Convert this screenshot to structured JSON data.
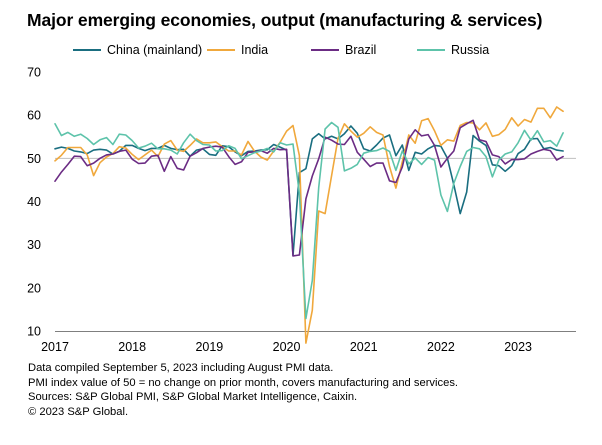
{
  "chart_data": {
    "type": "line",
    "title": "Major emerging economies, output (manufacturing & services)",
    "xlabel": "",
    "ylabel": "",
    "ylim": [
      10,
      70
    ],
    "yticks": [
      10,
      20,
      30,
      40,
      50,
      60,
      70
    ],
    "reference_line": 50,
    "xlim": [
      2017.0,
      2023.75
    ],
    "xtick_labels": [
      "2017",
      "2018",
      "2019",
      "2020",
      "2021",
      "2022",
      "2023"
    ],
    "x_start": "2017-01",
    "frequency": "monthly",
    "legend_position": "top",
    "series": [
      {
        "name": "China (mainland)",
        "color": "#1a6e80",
        "values": [
          52.2,
          52.6,
          52.3,
          51.7,
          51.5,
          51.1,
          51.9,
          52.1,
          51.9,
          51.0,
          51.6,
          53.0,
          53.0,
          52.3,
          51.8,
          52.3,
          52.3,
          53.0,
          52.3,
          52.0,
          52.1,
          50.5,
          51.9,
          52.2,
          50.9,
          50.7,
          52.9,
          52.7,
          51.5,
          50.6,
          51.6,
          51.7,
          51.9,
          52.0,
          53.2,
          52.6,
          51.9,
          27.5,
          46.7,
          47.6,
          54.5,
          55.7,
          54.5,
          55.1,
          54.5,
          55.7,
          57.5,
          55.8,
          52.2,
          51.7,
          53.1,
          54.7,
          55.4,
          50.6,
          53.1,
          47.2,
          51.4,
          51.0,
          52.2,
          53.0,
          52.8,
          50.0,
          43.9,
          37.2,
          42.2,
          55.3,
          54.0,
          53.0,
          48.5,
          48.3,
          47.0,
          48.3,
          51.1,
          52.1,
          54.5,
          54.6,
          52.2,
          52.5,
          51.9,
          51.7
        ]
      },
      {
        "name": "India",
        "color": "#f0a83c",
        "values": [
          49.4,
          50.7,
          52.5,
          52.5,
          52.5,
          50.8,
          46.0,
          49.0,
          50.3,
          51.1,
          52.7,
          52.4,
          50.9,
          49.7,
          50.8,
          51.9,
          50.4,
          53.3,
          54.1,
          51.9,
          51.6,
          53.0,
          54.5,
          53.6,
          53.6,
          53.8,
          52.7,
          51.7,
          51.7,
          50.8,
          53.9,
          51.7,
          50.3,
          49.6,
          51.7,
          53.7,
          56.3,
          57.6,
          50.6,
          7.2,
          14.8,
          37.8,
          37.2,
          46.0,
          54.6,
          58.0,
          56.3,
          54.9,
          55.8,
          57.3,
          56.0,
          55.4,
          48.1,
          43.1,
          49.2,
          55.4,
          53.5,
          58.7,
          59.2,
          56.4,
          53.0,
          54.3,
          54.0,
          57.6,
          58.3,
          58.2,
          56.6,
          58.2,
          55.1,
          55.5,
          56.7,
          59.4,
          57.5,
          59.0,
          58.4,
          61.6,
          61.6,
          59.4,
          61.9,
          60.9
        ]
      },
      {
        "name": "Brazil",
        "color": "#6b2c84",
        "values": [
          44.7,
          46.8,
          48.6,
          50.5,
          50.4,
          48.3,
          48.9,
          50.0,
          50.8,
          51.0,
          51.6,
          51.9,
          49.8,
          48.8,
          48.9,
          50.5,
          50.7,
          47.0,
          50.4,
          47.7,
          47.3,
          50.5,
          51.3,
          52.3,
          52.6,
          52.8,
          52.6,
          50.4,
          48.6,
          49.2,
          51.4,
          51.5,
          51.8,
          51.2,
          52.3,
          52.0,
          52.1,
          27.4,
          27.6,
          40.6,
          45.9,
          49.9,
          54.9,
          54.2,
          53.3,
          53.2,
          55.1,
          51.4,
          49.8,
          48.1,
          48.9,
          48.9,
          44.8,
          44.4,
          48.0,
          54.5,
          56.6,
          55.2,
          55.5,
          53.0,
          48.0,
          50.0,
          51.7,
          57.1,
          58.0,
          58.8,
          54.3,
          53.9,
          50.8,
          50.4,
          48.7,
          49.7,
          49.7,
          49.9,
          51.0,
          51.6,
          52.1,
          51.8,
          49.6,
          50.4
        ]
      },
      {
        "name": "Russia",
        "color": "#5dc3aa",
        "values": [
          58.0,
          55.3,
          56.0,
          55.1,
          55.6,
          54.6,
          53.2,
          54.3,
          54.8,
          53.2,
          55.6,
          55.4,
          54.1,
          52.4,
          52.8,
          53.5,
          52.2,
          52.2,
          51.9,
          51.0,
          53.6,
          55.6,
          54.1,
          53.2,
          53.1,
          51.7,
          51.8,
          52.9,
          52.3,
          49.9,
          50.6,
          51.3,
          51.7,
          52.3,
          51.5,
          53.6,
          53.1,
          53.3,
          41.8,
          12.9,
          21.7,
          43.2,
          56.8,
          58.3,
          57.2,
          47.1,
          47.7,
          48.6,
          51.2,
          51.6,
          51.8,
          52.4,
          51.6,
          47.2,
          51.7,
          48.7,
          50.1,
          48.6,
          50.2,
          49.6,
          41.5,
          37.7,
          44.2,
          48.1,
          51.6,
          52.5,
          52.2,
          50.4,
          45.7,
          49.6,
          51.0,
          51.5,
          53.6,
          56.5,
          54.2,
          56.4,
          53.8,
          54.1,
          52.8,
          55.9
        ]
      }
    ]
  },
  "footnotes": {
    "line1": "Data compiled September 5, 2023 including August PMI data.",
    "line2": "PMI index value of 50 = no change on prior month, covers manufacturing and services.",
    "line3": "Sources: S&P Global PMI, S&P Global Market Intelligence, Caixin.",
    "line4": "© 2023 S&P Global."
  }
}
